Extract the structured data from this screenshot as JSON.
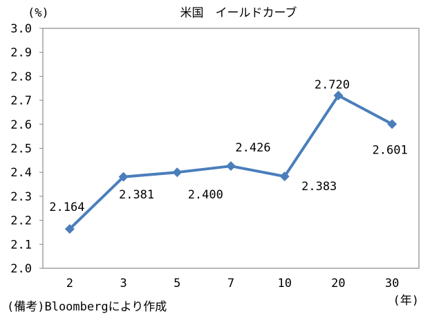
{
  "chart_data": {
    "type": "line",
    "title": "米国　イールドカーブ",
    "ylabel": "(%)",
    "xlabel": "(年)",
    "categories": [
      "2",
      "3",
      "5",
      "7",
      "10",
      "20",
      "30"
    ],
    "values": [
      2.164,
      2.381,
      2.4,
      2.426,
      2.383,
      2.72,
      2.601
    ],
    "data_labels": [
      "2.164",
      "2.381",
      "2.400",
      "2.426",
      "2.383",
      "2.720",
      "2.601"
    ],
    "ylim": [
      2.0,
      3.0
    ],
    "yticks": [
      "2.0",
      "2.1",
      "2.2",
      "2.3",
      "2.4",
      "2.5",
      "2.6",
      "2.7",
      "2.8",
      "2.9",
      "3.0"
    ],
    "grid": false,
    "marker": "diamond",
    "series_color": "#4a7ebb",
    "note": "(備考)Bloombergにより作成"
  }
}
